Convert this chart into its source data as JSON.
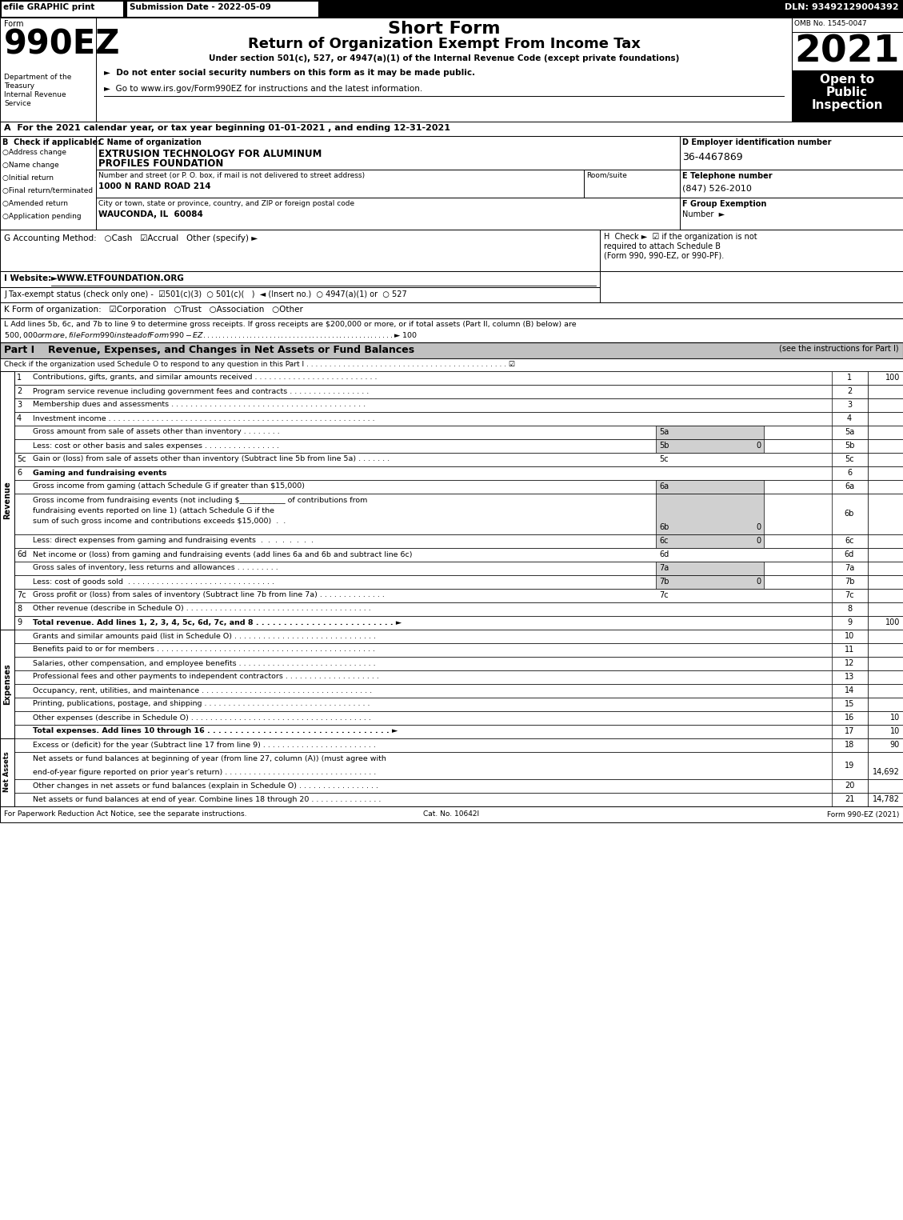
{
  "title_efile": "efile GRAPHIC print",
  "submission_date": "Submission Date - 2022-05-09",
  "dln": "DLN: 93492129004392",
  "form_number": "990EZ",
  "form_label": "Form",
  "short_form": "Short Form",
  "return_title": "Return of Organization Exempt From Income Tax",
  "under_section": "Under section 501(c), 527, or 4947(a)(1) of the Internal Revenue Code (except private foundations)",
  "year": "2021",
  "omb": "OMB No. 1545-0047",
  "dept1": "Department of the",
  "dept2": "Treasury",
  "dept3": "Internal Revenue",
  "dept4": "Service",
  "bullet1": "►  Do not enter social security numbers on this form as it may be made public.",
  "bullet2": "►  Go to www.irs.gov/Form990EZ for instructions and the latest information.",
  "section_a": "A  For the 2021 calendar year, or tax year beginning 01-01-2021 , and ending 12-31-2021",
  "b_label": "B  Check if applicable:",
  "b_items": [
    "○Address change",
    "○Name change",
    "○Initial return",
    "○Final return/terminated",
    "○Amended return",
    "○Application pending"
  ],
  "c_label": "C Name of organization",
  "org_name1": "EXTRUSION TECHNOLOGY FOR ALUMINUM",
  "org_name2": "PROFILES FOUNDATION",
  "street_label": "Number and street (or P. O. box, if mail is not delivered to street address)",
  "room_label": "Room/suite",
  "street": "1000 N RAND ROAD 214",
  "city_label": "City or town, state or province, country, and ZIP or foreign postal code",
  "city": "WAUCONDA, IL  60084",
  "d_label": "D Employer identification number",
  "ein": "36-4467869",
  "e_label": "E Telephone number",
  "phone": "(847) 526-2010",
  "f_label": "F Group Exemption",
  "f_label2": "Number  ►",
  "g_text": "G Accounting Method:   ○Cash   ☑Accrual   Other (specify) ►",
  "h_line1": "H  Check ►  ☑ if the organization is not",
  "h_line2": "required to attach Schedule B",
  "h_line3": "(Form 990, 990-EZ, or 990-PF).",
  "i_text": "I Website: ►WWW.ETFOUNDATION.ORG",
  "j_text": "J Tax-exempt status (check only one) -  ☑501(c)(3)  ○ 501(c)(   )  ◄ (Insert no.)  ○ 4947(a)(1) or  ○ 527",
  "k_text": "K Form of organization:   ☑Corporation   ○Trust   ○Association   ○Other",
  "l_line1": "L Add lines 5b, 6c, and 7b to line 9 to determine gross receipts. If gross receipts are $200,000 or more, or if total assets (Part II, column (B) below) are",
  "l_line2": "$500,000 or more, file Form 990 instead of Form 990-EZ . . . . . . . . . . . . . . . . . . . . . . . . . . . . . . . . . . . . . . . . . . . . . . . . . ►$ 100",
  "part1_header": "Part I",
  "part1_title": "Revenue, Expenses, and Changes in Net Assets or Fund Balances",
  "part1_see": "(see the instructions for Part I)",
  "part1_check": "Check if the organization used Schedule O to respond to any question in this Part I . . . . . . . . . . . . . . . . . . . . . . . . . . . . . . . . . . . . . . . . . . . . ☑",
  "rev_lines": [
    {
      "num": "1",
      "indent": 0,
      "text": "Contributions, gifts, grants, and similar amounts received . . . . . . . . . . . . . . . . . . . . . . . . . .",
      "mid_lbl": "",
      "mid_val": "",
      "right_val": "100"
    },
    {
      "num": "2",
      "indent": 0,
      "text": "Program service revenue including government fees and contracts . . . . . . . . . . . . . . . . .",
      "mid_lbl": "",
      "mid_val": "",
      "right_val": ""
    },
    {
      "num": "3",
      "indent": 0,
      "text": "Membership dues and assessments . . . . . . . . . . . . . . . . . . . . . . . . . . . . . . . . . . . . . . . . .",
      "mid_lbl": "",
      "mid_val": "",
      "right_val": ""
    },
    {
      "num": "4",
      "indent": 0,
      "text": "Investment income . . . . . . . . . . . . . . . . . . . . . . . . . . . . . . . . . . . . . . . . . . . . . . . . . . . . . . . .",
      "mid_lbl": "",
      "mid_val": "",
      "right_val": ""
    },
    {
      "num": "5a",
      "indent": 1,
      "text": "Gross amount from sale of assets other than inventory . . . . . . . .",
      "mid_lbl": "5a",
      "mid_val": "",
      "right_val": "",
      "shaded": true
    },
    {
      "num": "5b",
      "indent": 1,
      "text": "Less: cost or other basis and sales expenses . . . . . . . . . . . . . . . .",
      "mid_lbl": "5b",
      "mid_val": "0",
      "right_val": "",
      "shaded": true
    },
    {
      "num": "5c",
      "indent": 0,
      "text": "Gain or (loss) from sale of assets other than inventory (Subtract line 5b from line 5a) . . . . . . .",
      "mid_lbl": "5c",
      "mid_val": "",
      "right_val": ""
    },
    {
      "num": "6",
      "indent": 0,
      "text": "Gaming and fundraising events",
      "mid_lbl": "",
      "mid_val": "",
      "right_val": "",
      "bold": true
    },
    {
      "num": "6a",
      "indent": 1,
      "text": "Gross income from gaming (attach Schedule G if greater than $15,000)",
      "mid_lbl": "6a",
      "mid_val": "",
      "right_val": "",
      "shaded": true
    },
    {
      "num": "6b",
      "indent": 1,
      "multiline": true,
      "lines": [
        "Gross income from fundraising events (not including $____________ of contributions from",
        "fundraising events reported on line 1) (attach Schedule G if the",
        "sum of such gross income and contributions exceeds $15,000)  .  ."
      ],
      "mid_lbl": "6b",
      "mid_val": "0",
      "right_val": "",
      "shaded": true,
      "rows": 3
    },
    {
      "num": "6c",
      "indent": 1,
      "text": "Less: direct expenses from gaming and fundraising events  .  .  .  .  .  .  .  .",
      "mid_lbl": "6c",
      "mid_val": "0",
      "right_val": "",
      "shaded": true
    },
    {
      "num": "6d",
      "indent": 0,
      "text": "Net income or (loss) from gaming and fundraising events (add lines 6a and 6b and subtract line 6c)",
      "mid_lbl": "6d",
      "mid_val": "",
      "right_val": ""
    },
    {
      "num": "7a",
      "indent": 1,
      "text": "Gross sales of inventory, less returns and allowances . . . . . . . . .",
      "mid_lbl": "7a",
      "mid_val": "",
      "right_val": "",
      "shaded": true
    },
    {
      "num": "7b",
      "indent": 1,
      "text": "Less: cost of goods sold  . . . . . . . . . . . . . . . . . . . . . . . . . . . . . . .",
      "mid_lbl": "7b",
      "mid_val": "0",
      "right_val": "",
      "shaded": true
    },
    {
      "num": "7c",
      "indent": 0,
      "text": "Gross profit or (loss) from sales of inventory (Subtract line 7b from line 7a) . . . . . . . . . . . . . .",
      "mid_lbl": "7c",
      "mid_val": "",
      "right_val": ""
    },
    {
      "num": "8",
      "indent": 0,
      "text": "Other revenue (describe in Schedule O) . . . . . . . . . . . . . . . . . . . . . . . . . . . . . . . . . . . . . . .",
      "mid_lbl": "",
      "mid_val": "",
      "right_val": ""
    },
    {
      "num": "9",
      "indent": 0,
      "text": "Total revenue. Add lines 1, 2, 3, 4, 5c, 6d, 7c, and 8 . . . . . . . . . . . . . . . . . . . . . . . . . ►",
      "mid_lbl": "",
      "mid_val": "",
      "right_val": "100",
      "bold": true
    }
  ],
  "exp_lines": [
    {
      "num": "10",
      "text": "Grants and similar amounts paid (list in Schedule O) . . . . . . . . . . . . . . . . . . . . . . . . . . . . . .",
      "val": ""
    },
    {
      "num": "11",
      "text": "Benefits paid to or for members . . . . . . . . . . . . . . . . . . . . . . . . . . . . . . . . . . . . . . . . . . . . . .",
      "val": ""
    },
    {
      "num": "12",
      "text": "Salaries, other compensation, and employee benefits . . . . . . . . . . . . . . . . . . . . . . . . . . . . .",
      "val": ""
    },
    {
      "num": "13",
      "text": "Professional fees and other payments to independent contractors . . . . . . . . . . . . . . . . . . . .",
      "val": ""
    },
    {
      "num": "14",
      "text": "Occupancy, rent, utilities, and maintenance . . . . . . . . . . . . . . . . . . . . . . . . . . . . . . . . . . . .",
      "val": ""
    },
    {
      "num": "15",
      "text": "Printing, publications, postage, and shipping . . . . . . . . . . . . . . . . . . . . . . . . . . . . . . . . . . .",
      "val": ""
    },
    {
      "num": "16",
      "text": "Other expenses (describe in Schedule O) . . . . . . . . . . . . . . . . . . . . . . . . . . . . . . . . . . . . . .",
      "val": "10"
    },
    {
      "num": "17",
      "text": "Total expenses. Add lines 10 through 16 . . . . . . . . . . . . . . . . . . . . . . . . . . . . . . . . . ►",
      "val": "10",
      "bold": true
    }
  ],
  "net_lines": [
    {
      "num": "18",
      "text": "Excess or (deficit) for the year (Subtract line 17 from line 9) . . . . . . . . . . . . . . . . . . . . . . . .",
      "val": "90"
    },
    {
      "num": "19",
      "text": "Net assets or fund balances at beginning of year (from line 27, column (A)) (must agree with",
      "text2": "end-of-year figure reported on prior year's return) . . . . . . . . . . . . . . . . . . . . . . . . . . . . . . . .",
      "val": "14,692"
    },
    {
      "num": "20",
      "text": "Other changes in net assets or fund balances (explain in Schedule O) . . . . . . . . . . . . . . . . .",
      "val": ""
    },
    {
      "num": "21",
      "text": "Net assets or fund balances at end of year. Combine lines 18 through 20 . . . . . . . . . . . . . . .",
      "val": "14,782"
    }
  ],
  "footer_left": "For Paperwork Reduction Act Notice, see the separate instructions.",
  "footer_cat": "Cat. No. 10642I",
  "footer_right": "Form 990-EZ (2021)"
}
